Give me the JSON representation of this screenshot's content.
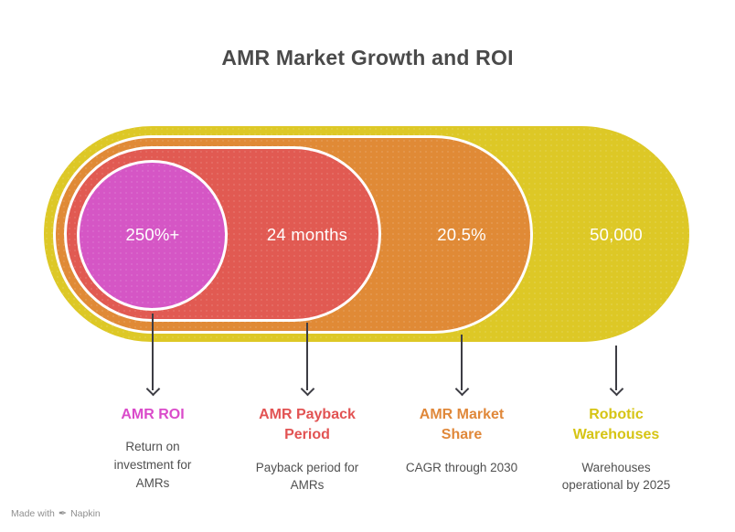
{
  "title": "AMR Market Growth and ROI",
  "items": [
    {
      "value": "250%+",
      "label": "AMR ROI",
      "description": "Return on investment for AMRs",
      "shape_color": "#d556c5",
      "label_color": "#da4bca"
    },
    {
      "value": "24 months",
      "label": "AMR Payback Period",
      "description": "Payback period for AMRs",
      "shape_color": "#e15a52",
      "label_color": "#e25353"
    },
    {
      "value": "20.5%",
      "label": "AMR Market Share",
      "description": "CAGR through 2030",
      "shape_color": "#e08a36",
      "label_color": "#e0883a"
    },
    {
      "value": "50,000",
      "label": "Robotic Warehouses",
      "description": "Warehouses operational by 2025",
      "shape_color": "#ddc826",
      "label_color": "#d6c414"
    }
  ],
  "watermark": {
    "prefix": "Made with",
    "brand": "Napkin",
    "icon": "pen-icon"
  },
  "colors": {
    "background": "#ffffff",
    "title_text": "#4a4a4a",
    "description_text": "#505050",
    "value_text": "#ffffff",
    "arrow": "#3d3d44",
    "watermark_text": "#909090",
    "shape_border": "#ffffff"
  }
}
